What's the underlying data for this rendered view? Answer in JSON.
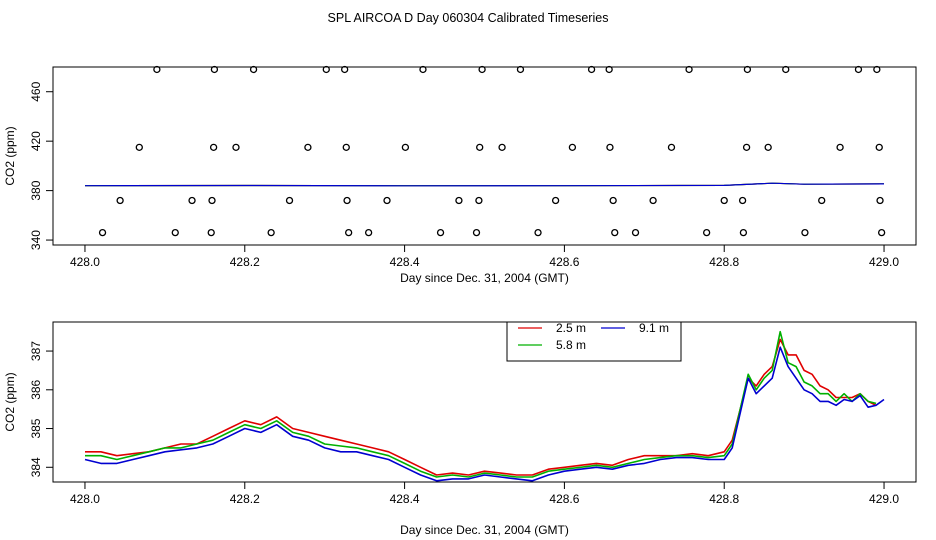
{
  "title": "SPL AIRCOA D  Day 060304  Calibrated Timeseries",
  "colors": {
    "2.5 m": "#e00000",
    "5.8 m": "#00b000",
    "9.1 m": "#0000d0",
    "axis": "#000000"
  },
  "chart_data": [
    {
      "type": "scatter",
      "xlabel": "Day since Dec. 31, 2004 (GMT)",
      "ylabel": "CO2 (ppm)",
      "xlim": [
        427.96,
        429.04
      ],
      "ylim": [
        336,
        480
      ],
      "x_ticks": [
        "428.0",
        "428.2",
        "428.4",
        "428.6",
        "428.8",
        "429.0"
      ],
      "y_ticks": [
        "340",
        "380",
        "420",
        "460"
      ],
      "points": [
        [
          428.09,
          478
        ],
        [
          428.162,
          478
        ],
        [
          428.211,
          478
        ],
        [
          428.302,
          478
        ],
        [
          428.325,
          478
        ],
        [
          428.423,
          478
        ],
        [
          428.497,
          478
        ],
        [
          428.545,
          478
        ],
        [
          428.634,
          478
        ],
        [
          428.656,
          478
        ],
        [
          428.756,
          478
        ],
        [
          428.829,
          478
        ],
        [
          428.877,
          478
        ],
        [
          428.968,
          478
        ],
        [
          428.991,
          478
        ],
        [
          428.068,
          415
        ],
        [
          428.161,
          415
        ],
        [
          428.189,
          415
        ],
        [
          428.279,
          415
        ],
        [
          428.327,
          415
        ],
        [
          428.401,
          415
        ],
        [
          428.494,
          415
        ],
        [
          428.522,
          415
        ],
        [
          428.61,
          415
        ],
        [
          428.657,
          415
        ],
        [
          428.734,
          415
        ],
        [
          428.828,
          415
        ],
        [
          428.855,
          415
        ],
        [
          428.945,
          415
        ],
        [
          428.994,
          415
        ],
        [
          428.044,
          372
        ],
        [
          428.134,
          372
        ],
        [
          428.159,
          372
        ],
        [
          428.256,
          372
        ],
        [
          428.328,
          372
        ],
        [
          428.378,
          372
        ],
        [
          428.468,
          372
        ],
        [
          428.493,
          372
        ],
        [
          428.589,
          372
        ],
        [
          428.661,
          372
        ],
        [
          428.711,
          372
        ],
        [
          428.8,
          372
        ],
        [
          428.823,
          372
        ],
        [
          428.922,
          372
        ],
        [
          428.995,
          372
        ],
        [
          428.022,
          346
        ],
        [
          428.113,
          346
        ],
        [
          428.158,
          346
        ],
        [
          428.233,
          346
        ],
        [
          428.33,
          346
        ],
        [
          428.355,
          346
        ],
        [
          428.445,
          346
        ],
        [
          428.49,
          346
        ],
        [
          428.567,
          346
        ],
        [
          428.663,
          346
        ],
        [
          428.689,
          346
        ],
        [
          428.778,
          346
        ],
        [
          428.824,
          346
        ],
        [
          428.901,
          346
        ],
        [
          428.997,
          346
        ]
      ],
      "series": [
        {
          "name": "2.5 m",
          "values": [
            [
              428.0,
              384.0
            ],
            [
              428.2,
              384.1
            ],
            [
              428.4,
              384.0
            ],
            [
              428.6,
              384.0
            ],
            [
              428.8,
              384.2
            ],
            [
              428.86,
              386.0
            ],
            [
              428.9,
              385.2
            ],
            [
              429.0,
              385.4
            ]
          ]
        },
        {
          "name": "5.8 m",
          "values": [
            [
              428.0,
              384.0
            ],
            [
              428.2,
              384.1
            ],
            [
              428.4,
              384.0
            ],
            [
              428.6,
              384.0
            ],
            [
              428.8,
              384.2
            ],
            [
              428.86,
              386.0
            ],
            [
              428.9,
              385.2
            ],
            [
              429.0,
              385.4
            ]
          ]
        },
        {
          "name": "9.1 m",
          "values": [
            [
              428.0,
              384.0
            ],
            [
              428.2,
              384.1
            ],
            [
              428.4,
              383.9
            ],
            [
              428.6,
              384.0
            ],
            [
              428.8,
              384.2
            ],
            [
              428.86,
              386.0
            ],
            [
              428.9,
              385.2
            ],
            [
              429.0,
              385.4
            ]
          ]
        }
      ]
    },
    {
      "type": "line",
      "xlabel": "Day since Dec. 31, 2004 (GMT)",
      "ylabel": "CO2 (ppm)",
      "xlim": [
        427.96,
        429.04
      ],
      "ylim": [
        383.62,
        387.75
      ],
      "x_ticks": [
        "428.0",
        "428.2",
        "428.4",
        "428.6",
        "428.8",
        "429.0"
      ],
      "y_ticks": [
        "384",
        "385",
        "386",
        "387"
      ],
      "legend": [
        "2.5 m",
        "5.8 m",
        "9.1 m"
      ],
      "legend_position": "top-center",
      "series": [
        {
          "name": "2.5 m",
          "values": [
            [
              428.0,
              384.4
            ],
            [
              428.02,
              384.4
            ],
            [
              428.04,
              384.3
            ],
            [
              428.06,
              384.35
            ],
            [
              428.08,
              384.4
            ],
            [
              428.1,
              384.5
            ],
            [
              428.12,
              384.6
            ],
            [
              428.14,
              384.6
            ],
            [
              428.16,
              384.8
            ],
            [
              428.18,
              385.0
            ],
            [
              428.2,
              385.2
            ],
            [
              428.22,
              385.1
            ],
            [
              428.24,
              385.3
            ],
            [
              428.26,
              385.0
            ],
            [
              428.28,
              384.9
            ],
            [
              428.3,
              384.8
            ],
            [
              428.32,
              384.7
            ],
            [
              428.34,
              384.6
            ],
            [
              428.36,
              384.5
            ],
            [
              428.38,
              384.4
            ],
            [
              428.4,
              384.2
            ],
            [
              428.42,
              384.0
            ],
            [
              428.44,
              383.8
            ],
            [
              428.46,
              383.85
            ],
            [
              428.48,
              383.8
            ],
            [
              428.5,
              383.9
            ],
            [
              428.52,
              383.85
            ],
            [
              428.54,
              383.8
            ],
            [
              428.56,
              383.8
            ],
            [
              428.58,
              383.95
            ],
            [
              428.6,
              384.0
            ],
            [
              428.62,
              384.05
            ],
            [
              428.64,
              384.1
            ],
            [
              428.66,
              384.05
            ],
            [
              428.68,
              384.2
            ],
            [
              428.7,
              384.3
            ],
            [
              428.72,
              384.3
            ],
            [
              428.74,
              384.3
            ],
            [
              428.76,
              384.35
            ],
            [
              428.78,
              384.3
            ],
            [
              428.8,
              384.4
            ],
            [
              428.81,
              384.7
            ],
            [
              428.83,
              386.3
            ],
            [
              428.84,
              386.1
            ],
            [
              428.85,
              386.4
            ],
            [
              428.86,
              386.6
            ],
            [
              428.87,
              387.3
            ],
            [
              428.88,
              386.9
            ],
            [
              428.89,
              386.9
            ],
            [
              428.9,
              386.5
            ],
            [
              428.91,
              386.4
            ],
            [
              428.92,
              386.1
            ],
            [
              428.93,
              386.0
            ],
            [
              428.94,
              385.8
            ],
            [
              428.95,
              385.8
            ],
            [
              428.96,
              385.8
            ],
            [
              428.97,
              385.9
            ],
            [
              428.98,
              385.7
            ],
            [
              428.99,
              385.6
            ]
          ]
        },
        {
          "name": "5.8 m",
          "values": [
            [
              428.0,
              384.3
            ],
            [
              428.02,
              384.3
            ],
            [
              428.04,
              384.2
            ],
            [
              428.06,
              384.3
            ],
            [
              428.08,
              384.4
            ],
            [
              428.1,
              384.5
            ],
            [
              428.12,
              384.5
            ],
            [
              428.14,
              384.6
            ],
            [
              428.16,
              384.7
            ],
            [
              428.18,
              384.9
            ],
            [
              428.2,
              385.1
            ],
            [
              428.22,
              385.0
            ],
            [
              428.24,
              385.2
            ],
            [
              428.26,
              384.9
            ],
            [
              428.28,
              384.8
            ],
            [
              428.3,
              384.6
            ],
            [
              428.32,
              384.55
            ],
            [
              428.34,
              384.5
            ],
            [
              428.36,
              384.4
            ],
            [
              428.38,
              384.3
            ],
            [
              428.4,
              384.1
            ],
            [
              428.42,
              383.9
            ],
            [
              428.44,
              383.75
            ],
            [
              428.46,
              383.8
            ],
            [
              428.48,
              383.75
            ],
            [
              428.5,
              383.85
            ],
            [
              428.52,
              383.8
            ],
            [
              428.54,
              383.75
            ],
            [
              428.56,
              383.75
            ],
            [
              428.58,
              383.9
            ],
            [
              428.6,
              383.95
            ],
            [
              428.62,
              384.0
            ],
            [
              428.64,
              384.05
            ],
            [
              428.66,
              384.0
            ],
            [
              428.68,
              384.1
            ],
            [
              428.7,
              384.2
            ],
            [
              428.72,
              384.25
            ],
            [
              428.74,
              384.3
            ],
            [
              428.76,
              384.3
            ],
            [
              428.78,
              384.25
            ],
            [
              428.8,
              384.3
            ],
            [
              428.81,
              384.6
            ],
            [
              428.83,
              386.4
            ],
            [
              428.84,
              386.0
            ],
            [
              428.85,
              386.3
            ],
            [
              428.86,
              386.5
            ],
            [
              428.87,
              387.5
            ],
            [
              428.88,
              386.7
            ],
            [
              428.89,
              386.6
            ],
            [
              428.9,
              386.2
            ],
            [
              428.91,
              386.1
            ],
            [
              428.92,
              385.9
            ],
            [
              428.93,
              385.9
            ],
            [
              428.94,
              385.7
            ],
            [
              428.95,
              385.9
            ],
            [
              428.96,
              385.7
            ],
            [
              428.97,
              385.9
            ],
            [
              428.98,
              385.7
            ],
            [
              428.99,
              385.65
            ]
          ]
        },
        {
          "name": "9.1 m",
          "values": [
            [
              428.0,
              384.2
            ],
            [
              428.02,
              384.1
            ],
            [
              428.04,
              384.1
            ],
            [
              428.06,
              384.2
            ],
            [
              428.08,
              384.3
            ],
            [
              428.1,
              384.4
            ],
            [
              428.12,
              384.45
            ],
            [
              428.14,
              384.5
            ],
            [
              428.16,
              384.6
            ],
            [
              428.18,
              384.8
            ],
            [
              428.2,
              385.0
            ],
            [
              428.22,
              384.9
            ],
            [
              428.24,
              385.1
            ],
            [
              428.26,
              384.8
            ],
            [
              428.28,
              384.7
            ],
            [
              428.3,
              384.5
            ],
            [
              428.32,
              384.4
            ],
            [
              428.34,
              384.4
            ],
            [
              428.36,
              384.3
            ],
            [
              428.38,
              384.2
            ],
            [
              428.4,
              384.0
            ],
            [
              428.42,
              383.8
            ],
            [
              428.44,
              383.65
            ],
            [
              428.46,
              383.7
            ],
            [
              428.48,
              383.7
            ],
            [
              428.5,
              383.8
            ],
            [
              428.52,
              383.75
            ],
            [
              428.54,
              383.7
            ],
            [
              428.56,
              383.65
            ],
            [
              428.58,
              383.8
            ],
            [
              428.6,
              383.9
            ],
            [
              428.62,
              383.95
            ],
            [
              428.64,
              384.0
            ],
            [
              428.66,
              383.95
            ],
            [
              428.68,
              384.05
            ],
            [
              428.7,
              384.1
            ],
            [
              428.72,
              384.2
            ],
            [
              428.74,
              384.25
            ],
            [
              428.76,
              384.25
            ],
            [
              428.78,
              384.2
            ],
            [
              428.8,
              384.2
            ],
            [
              428.81,
              384.5
            ],
            [
              428.83,
              386.3
            ],
            [
              428.84,
              385.9
            ],
            [
              428.85,
              386.1
            ],
            [
              428.86,
              386.3
            ],
            [
              428.87,
              387.1
            ],
            [
              428.88,
              386.6
            ],
            [
              428.89,
              386.3
            ],
            [
              428.9,
              386.0
            ],
            [
              428.91,
              385.9
            ],
            [
              428.92,
              385.7
            ],
            [
              428.93,
              385.7
            ],
            [
              428.94,
              385.6
            ],
            [
              428.95,
              385.75
            ],
            [
              428.96,
              385.7
            ],
            [
              428.97,
              385.85
            ],
            [
              428.98,
              385.55
            ],
            [
              428.99,
              385.6
            ],
            [
              429.0,
              385.75
            ]
          ]
        }
      ]
    }
  ]
}
